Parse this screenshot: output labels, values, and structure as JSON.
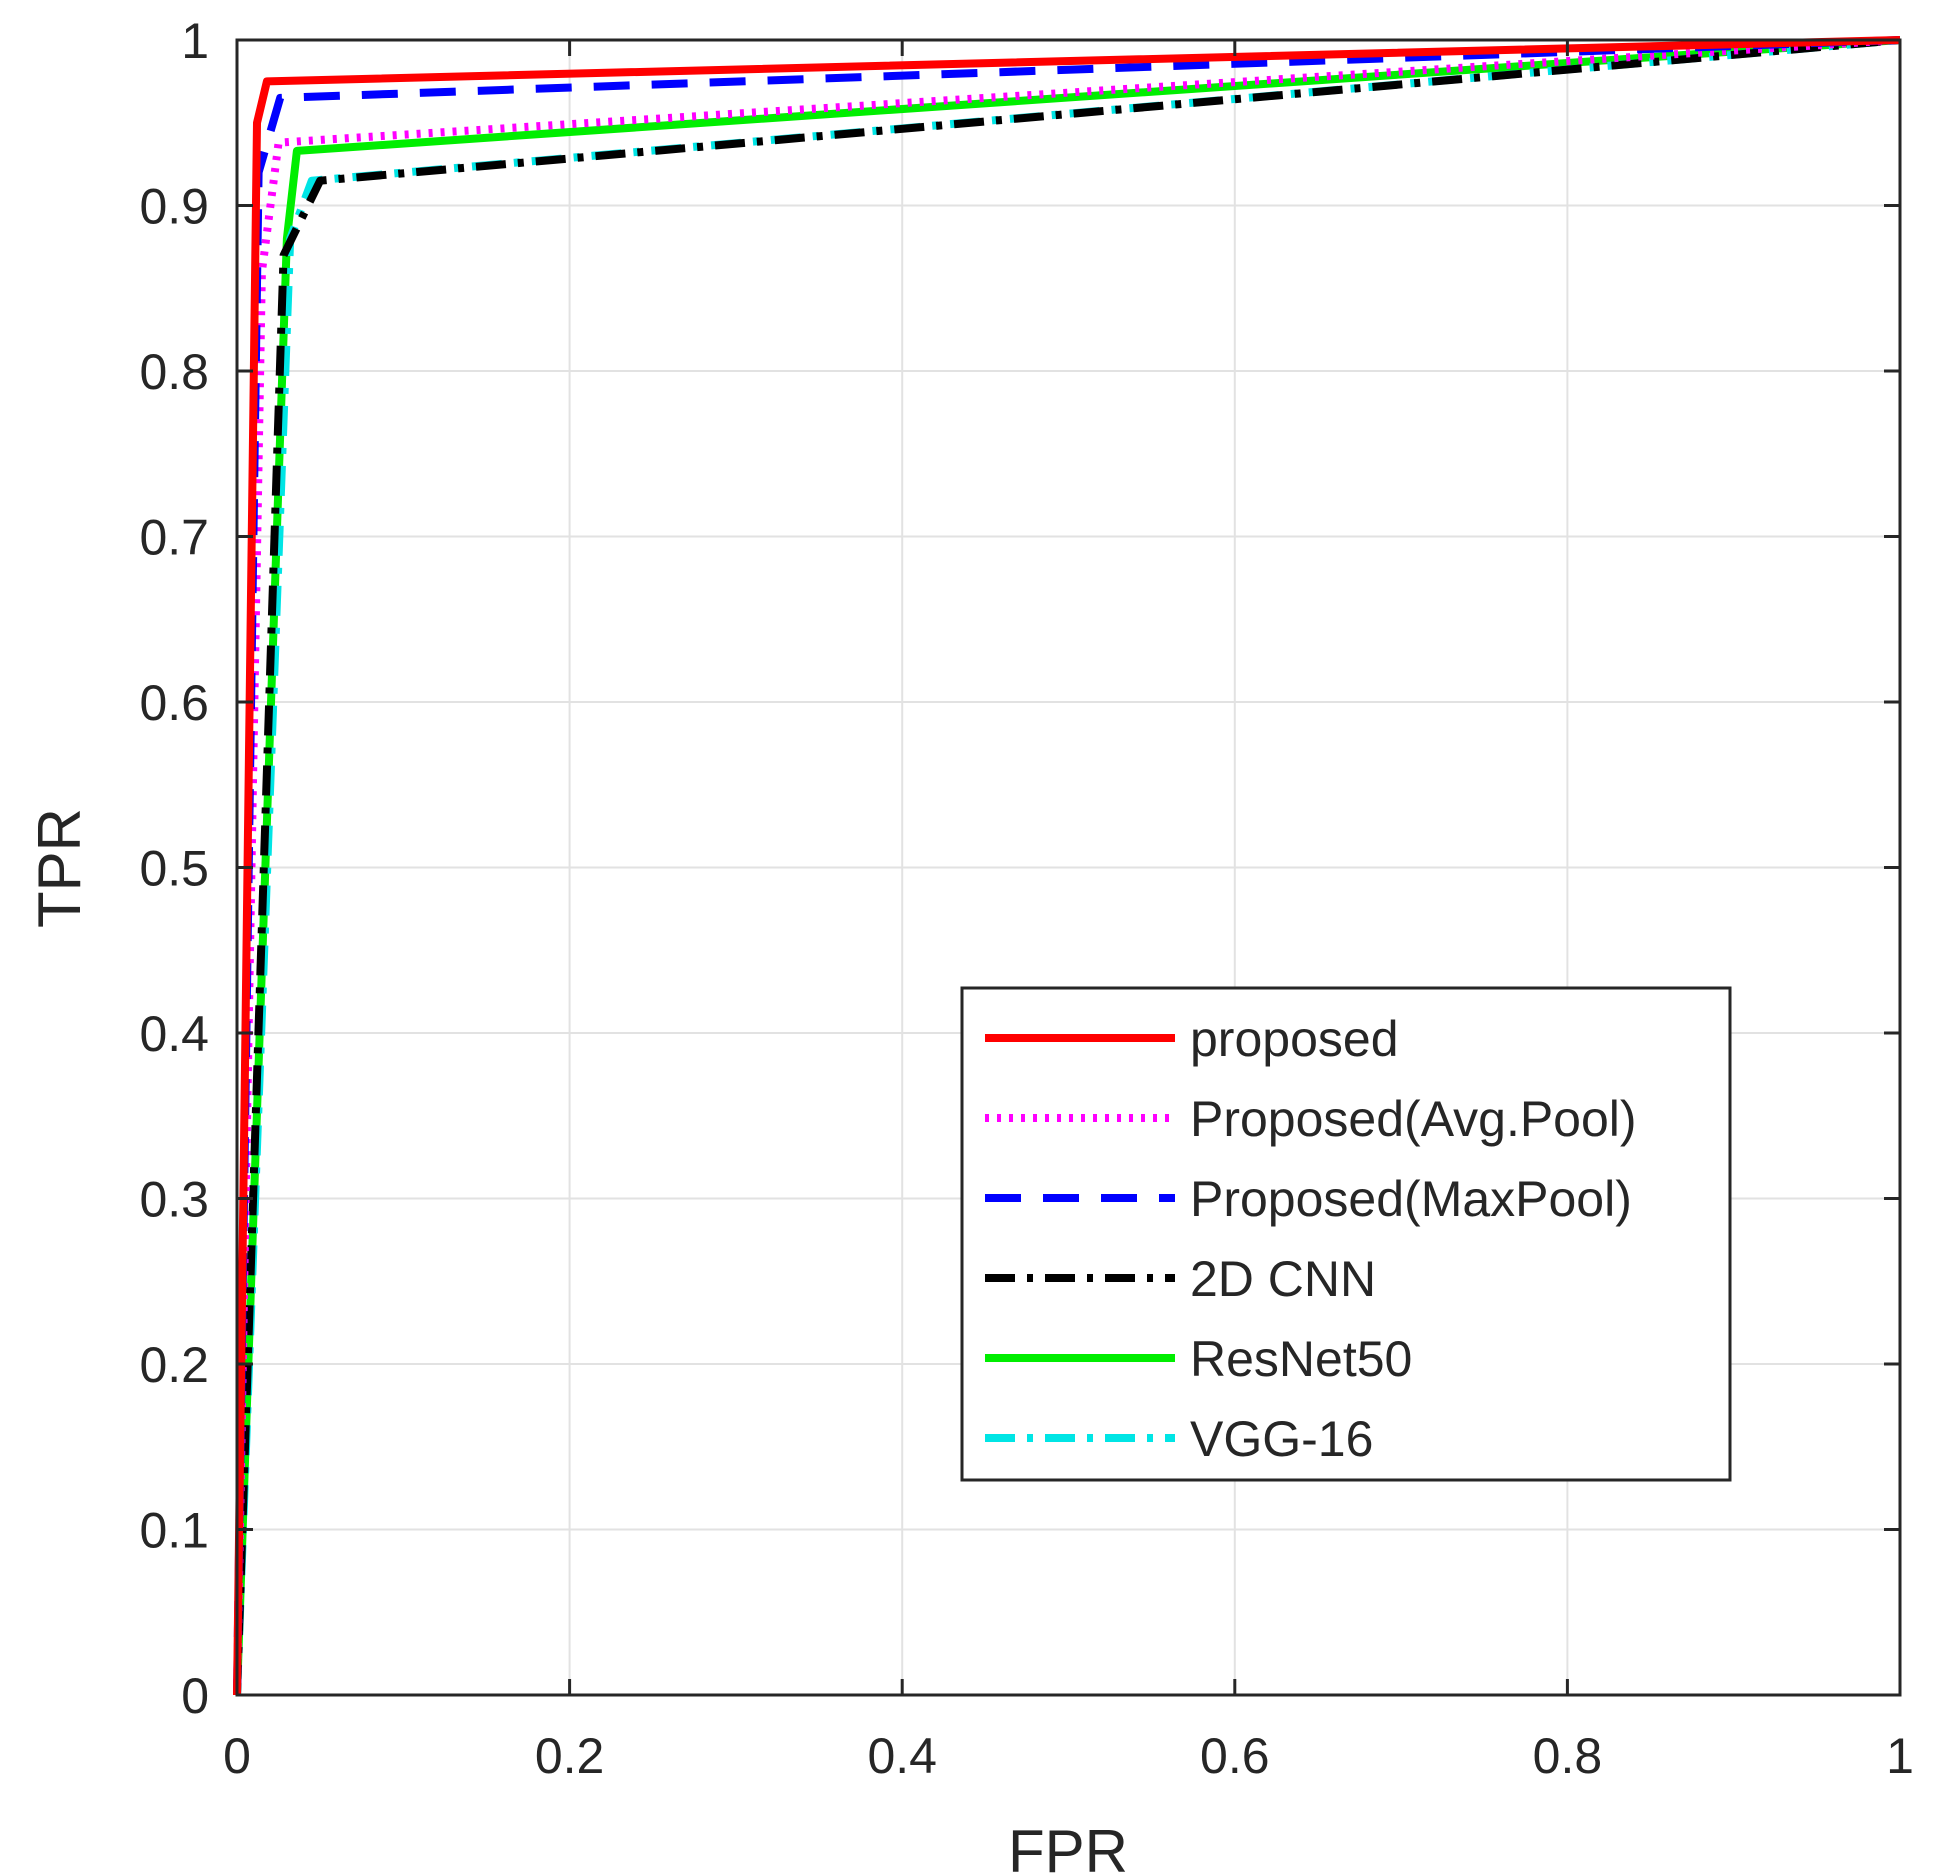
{
  "chart_data": {
    "type": "line",
    "title": "",
    "xlabel": "FPR",
    "ylabel": "TPR",
    "xlim": [
      0,
      1
    ],
    "ylim": [
      0,
      1
    ],
    "grid": true,
    "legend_position": "bottom-right",
    "xticks": [
      0,
      0.2,
      0.4,
      0.6,
      0.8,
      1
    ],
    "xtick_labels": [
      "0",
      "0.2",
      "0.4",
      "0.6",
      "0.8",
      "1"
    ],
    "yticks": [
      0,
      0.1,
      0.2,
      0.3,
      0.4,
      0.5,
      0.6,
      0.7,
      0.8,
      0.9,
      1
    ],
    "ytick_labels": [
      "0",
      "0.1",
      "0.2",
      "0.3",
      "0.4",
      "0.5",
      "0.6",
      "0.7",
      "0.8",
      "0.9",
      "1"
    ],
    "series": [
      {
        "name": "proposed",
        "color": "#ff0000",
        "style": "solid",
        "x": [
          0,
          0.012,
          0.018,
          1
        ],
        "y": [
          0,
          0.95,
          0.975,
          1
        ]
      },
      {
        "name": "Proposed(Avg.Pool)",
        "color": "#ff00ff",
        "style": "dotted",
        "x": [
          0,
          0.015,
          0.025,
          1
        ],
        "y": [
          0,
          0.86,
          0.938,
          1
        ]
      },
      {
        "name": "Proposed(MaxPool)",
        "color": "#0000ff",
        "style": "dashed",
        "x": [
          0,
          0.013,
          0.026,
          1
        ],
        "y": [
          0,
          0.92,
          0.965,
          1
        ]
      },
      {
        "name": "2D CNN",
        "color": "#000000",
        "style": "dashdot",
        "x": [
          0,
          0.028,
          0.05,
          1
        ],
        "y": [
          0,
          0.87,
          0.915,
          1
        ]
      },
      {
        "name": "ResNet50",
        "color": "#00ee00",
        "style": "solid",
        "x": [
          0,
          0.03,
          0.036,
          1
        ],
        "y": [
          0,
          0.88,
          0.933,
          1
        ]
      },
      {
        "name": "VGG-16",
        "color": "#00e5e5",
        "style": "dashdot",
        "x": [
          0,
          0.032,
          0.045,
          1
        ],
        "y": [
          0,
          0.88,
          0.915,
          1
        ]
      }
    ]
  }
}
